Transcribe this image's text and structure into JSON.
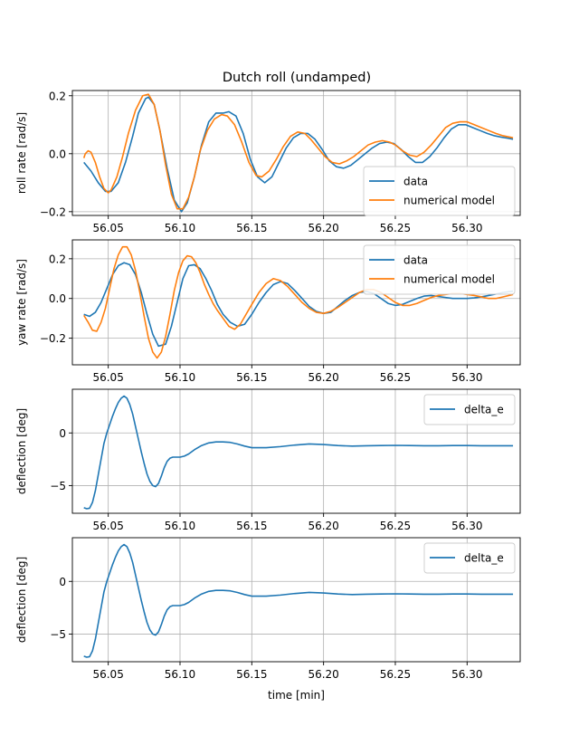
{
  "figure": {
    "title": "Dutch roll (undamped)",
    "xlabel": "time [min]"
  },
  "colors": {
    "data": "#1f77b4",
    "model": "#ff7f0e",
    "grid": "#b0b0b0",
    "axes": "#000000"
  },
  "chart_data": [
    {
      "type": "line",
      "title": "Dutch roll (undamped)",
      "xlabel": "",
      "ylabel": "roll rate [rad/s]",
      "xlim": [
        56.025,
        56.337
      ],
      "ylim": [
        -0.213,
        0.218
      ],
      "xticks": [
        56.05,
        56.1,
        56.15,
        56.2,
        56.25,
        56.3
      ],
      "xticklabels": [
        "56.05",
        "56.10",
        "56.15",
        "56.20",
        "56.25",
        "56.30"
      ],
      "yticks": [
        -0.2,
        0.0,
        0.2
      ],
      "yticklabels": [
        "−0.2",
        "0.0",
        "0.2"
      ],
      "grid": true,
      "legend": "lower-right",
      "series": [
        {
          "name": "data",
          "color": "#1f77b4",
          "x": [
            56.033,
            56.038,
            56.043,
            56.048,
            56.052,
            56.057,
            56.062,
            56.067,
            56.071,
            56.076,
            56.078,
            56.082,
            56.086,
            56.091,
            56.096,
            56.101,
            56.105,
            56.11,
            56.115,
            56.12,
            56.125,
            56.13,
            56.134,
            56.139,
            56.144,
            56.149,
            56.154,
            56.159,
            56.164,
            56.169,
            56.174,
            56.179,
            56.184,
            56.189,
            56.194,
            56.199,
            56.204,
            56.209,
            56.214,
            56.219,
            56.224,
            56.229,
            56.234,
            56.239,
            56.244,
            56.249,
            56.254,
            56.259,
            56.264,
            56.269,
            56.274,
            56.279,
            56.284,
            56.289,
            56.294,
            56.299,
            56.304,
            56.309,
            56.314,
            56.319,
            56.324,
            56.329,
            56.332
          ],
          "y": [
            -0.03,
            -0.06,
            -0.1,
            -0.13,
            -0.13,
            -0.1,
            -0.03,
            0.06,
            0.14,
            0.19,
            0.195,
            0.17,
            0.08,
            -0.05,
            -0.16,
            -0.2,
            -0.17,
            -0.08,
            0.03,
            0.11,
            0.14,
            0.14,
            0.145,
            0.13,
            0.07,
            -0.02,
            -0.08,
            -0.1,
            -0.08,
            -0.03,
            0.02,
            0.055,
            0.07,
            0.07,
            0.05,
            0.015,
            -0.025,
            -0.045,
            -0.05,
            -0.04,
            -0.02,
            0.0,
            0.02,
            0.035,
            0.04,
            0.035,
            0.015,
            -0.01,
            -0.03,
            -0.03,
            -0.01,
            0.02,
            0.055,
            0.085,
            0.1,
            0.1,
            0.09,
            0.08,
            0.07,
            0.062,
            0.057,
            0.053,
            0.05
          ]
        },
        {
          "name": "numerical model",
          "color": "#ff7f0e",
          "x": [
            56.033,
            56.034,
            56.036,
            56.038,
            56.041,
            56.044,
            56.047,
            56.05,
            56.052,
            56.056,
            56.06,
            56.064,
            56.069,
            56.074,
            56.078,
            56.082,
            56.086,
            56.09,
            56.094,
            56.098,
            56.102,
            56.106,
            56.11,
            56.114,
            56.119,
            56.124,
            56.129,
            56.133,
            56.138,
            56.143,
            56.148,
            56.153,
            56.157,
            56.162,
            56.167,
            56.172,
            56.177,
            56.182,
            56.187,
            56.191,
            56.196,
            56.201,
            56.206,
            56.211,
            56.216,
            56.221,
            56.226,
            56.231,
            56.236,
            56.241,
            56.246,
            56.25,
            56.255,
            56.26,
            56.265,
            56.27,
            56.275,
            56.28,
            56.285,
            56.29,
            56.295,
            56.3,
            56.305,
            56.31,
            56.315,
            56.32,
            56.325,
            56.332
          ],
          "y": [
            -0.015,
            0.0,
            0.01,
            0.005,
            -0.03,
            -0.08,
            -0.12,
            -0.135,
            -0.125,
            -0.08,
            -0.01,
            0.07,
            0.15,
            0.2,
            0.205,
            0.17,
            0.08,
            -0.04,
            -0.14,
            -0.19,
            -0.19,
            -0.15,
            -0.08,
            0.01,
            0.08,
            0.12,
            0.135,
            0.13,
            0.1,
            0.04,
            -0.03,
            -0.075,
            -0.08,
            -0.06,
            -0.02,
            0.025,
            0.06,
            0.075,
            0.07,
            0.05,
            0.02,
            -0.01,
            -0.03,
            -0.035,
            -0.025,
            -0.01,
            0.01,
            0.03,
            0.04,
            0.045,
            0.04,
            0.03,
            0.01,
            -0.005,
            -0.01,
            0.005,
            0.03,
            0.06,
            0.09,
            0.105,
            0.11,
            0.11,
            0.1,
            0.09,
            0.08,
            0.07,
            0.062,
            0.055
          ]
        }
      ]
    },
    {
      "type": "line",
      "title": "",
      "xlabel": "",
      "ylabel": "yaw rate [rad/s]",
      "xlim": [
        56.025,
        56.337
      ],
      "ylim": [
        -0.334,
        0.295
      ],
      "xticks": [
        56.05,
        56.1,
        56.15,
        56.2,
        56.25,
        56.3
      ],
      "xticklabels": [
        "56.05",
        "56.10",
        "56.15",
        "56.20",
        "56.25",
        "56.30"
      ],
      "yticks": [
        -0.2,
        0.0,
        0.2
      ],
      "yticklabels": [
        "−0.2",
        "0.0",
        "0.2"
      ],
      "grid": true,
      "legend": "upper-right",
      "series": [
        {
          "name": "data",
          "color": "#1f77b4",
          "x": [
            56.033,
            56.037,
            56.041,
            56.045,
            56.049,
            56.053,
            56.057,
            56.061,
            56.065,
            56.069,
            56.073,
            56.077,
            56.081,
            56.085,
            56.09,
            56.094,
            56.098,
            56.102,
            56.106,
            56.11,
            56.114,
            56.118,
            56.122,
            56.126,
            56.13,
            56.135,
            56.14,
            56.145,
            56.15,
            56.155,
            56.16,
            56.165,
            56.17,
            56.175,
            56.18,
            56.185,
            56.19,
            56.195,
            56.2,
            56.205,
            56.21,
            56.215,
            56.22,
            56.225,
            56.23,
            56.235,
            56.24,
            56.245,
            56.25,
            56.255,
            56.26,
            56.265,
            56.27,
            56.275,
            56.28,
            56.285,
            56.29,
            56.295,
            56.3,
            56.305,
            56.31,
            56.315,
            56.32,
            56.325,
            56.332
          ],
          "y": [
            -0.08,
            -0.09,
            -0.07,
            -0.02,
            0.05,
            0.12,
            0.165,
            0.18,
            0.17,
            0.12,
            0.03,
            -0.08,
            -0.18,
            -0.24,
            -0.23,
            -0.14,
            -0.02,
            0.1,
            0.165,
            0.17,
            0.15,
            0.1,
            0.04,
            -0.03,
            -0.08,
            -0.12,
            -0.14,
            -0.13,
            -0.08,
            -0.02,
            0.03,
            0.07,
            0.085,
            0.075,
            0.04,
            0.0,
            -0.04,
            -0.065,
            -0.075,
            -0.07,
            -0.04,
            -0.01,
            0.015,
            0.03,
            0.035,
            0.025,
            0.0,
            -0.025,
            -0.035,
            -0.03,
            -0.015,
            0.0,
            0.012,
            0.015,
            0.01,
            0.005,
            0.0,
            0.0,
            0.0,
            0.003,
            0.008,
            0.015,
            0.022,
            0.03,
            0.037
          ]
        },
        {
          "name": "numerical model",
          "color": "#ff7f0e",
          "x": [
            56.033,
            56.036,
            56.039,
            56.042,
            56.045,
            56.048,
            56.051,
            56.054,
            56.057,
            56.06,
            56.063,
            56.066,
            56.069,
            56.072,
            56.075,
            56.078,
            56.081,
            56.084,
            56.087,
            56.09,
            56.093,
            56.096,
            56.099,
            56.102,
            56.105,
            56.108,
            56.111,
            56.114,
            56.117,
            56.12,
            56.123,
            56.126,
            56.13,
            56.134,
            56.138,
            56.142,
            56.146,
            56.15,
            56.155,
            56.16,
            56.165,
            56.17,
            56.175,
            56.18,
            56.185,
            56.19,
            56.195,
            56.2,
            56.205,
            56.21,
            56.215,
            56.22,
            56.225,
            56.23,
            56.235,
            56.24,
            56.245,
            56.25,
            56.255,
            56.26,
            56.265,
            56.27,
            56.275,
            56.28,
            56.285,
            56.29,
            56.295,
            56.3,
            56.305,
            56.31,
            56.315,
            56.32,
            56.325,
            56.332
          ],
          "y": [
            -0.085,
            -0.12,
            -0.16,
            -0.165,
            -0.12,
            -0.05,
            0.05,
            0.15,
            0.22,
            0.26,
            0.26,
            0.22,
            0.14,
            0.03,
            -0.09,
            -0.2,
            -0.27,
            -0.3,
            -0.27,
            -0.19,
            -0.08,
            0.04,
            0.13,
            0.19,
            0.215,
            0.21,
            0.18,
            0.13,
            0.07,
            0.02,
            -0.025,
            -0.06,
            -0.1,
            -0.14,
            -0.155,
            -0.13,
            -0.08,
            -0.03,
            0.03,
            0.075,
            0.1,
            0.09,
            0.06,
            0.02,
            -0.02,
            -0.05,
            -0.07,
            -0.075,
            -0.065,
            -0.045,
            -0.02,
            0.005,
            0.03,
            0.045,
            0.045,
            0.03,
            0.005,
            -0.02,
            -0.035,
            -0.035,
            -0.025,
            -0.01,
            0.005,
            0.015,
            0.02,
            0.025,
            0.025,
            0.02,
            0.015,
            0.008,
            0.0,
            0.0,
            0.008,
            0.02
          ]
        }
      ]
    },
    {
      "type": "line",
      "title": "",
      "xlabel": "",
      "ylabel": "deflection [deg]",
      "xlim": [
        56.025,
        56.337
      ],
      "ylim": [
        -7.63,
        4.15
      ],
      "xticks": [
        56.05,
        56.1,
        56.15,
        56.2,
        56.25,
        56.3
      ],
      "xticklabels": [
        "56.05",
        "56.10",
        "56.15",
        "56.20",
        "56.25",
        "56.30"
      ],
      "yticks": [
        -5,
        0
      ],
      "yticklabels": [
        "−5",
        "0"
      ],
      "grid": true,
      "legend": "upper-right",
      "series": [
        {
          "name": "delta_e",
          "color": "#1f77b4",
          "x": [
            56.033,
            56.035,
            56.037,
            56.039,
            56.041,
            56.043,
            56.045,
            56.047,
            56.049,
            56.051,
            56.053,
            56.055,
            56.057,
            56.059,
            56.061,
            56.063,
            56.065,
            56.067,
            56.069,
            56.071,
            56.073,
            56.075,
            56.077,
            56.079,
            56.081,
            56.083,
            56.085,
            56.087,
            56.089,
            56.091,
            56.093,
            56.095,
            56.097,
            56.1,
            56.103,
            56.106,
            56.11,
            56.115,
            56.12,
            56.125,
            56.13,
            56.135,
            56.14,
            56.145,
            56.15,
            56.16,
            56.17,
            56.18,
            56.19,
            56.2,
            56.21,
            56.22,
            56.23,
            56.24,
            56.25,
            56.26,
            56.27,
            56.28,
            56.29,
            56.3,
            56.31,
            56.32,
            56.332
          ],
          "y": [
            -7.1,
            -7.2,
            -7.15,
            -6.6,
            -5.5,
            -4.0,
            -2.5,
            -1.0,
            0.0,
            0.8,
            1.6,
            2.3,
            2.9,
            3.3,
            3.5,
            3.3,
            2.7,
            1.8,
            0.6,
            -0.6,
            -1.8,
            -2.9,
            -3.9,
            -4.6,
            -5.0,
            -5.1,
            -4.8,
            -4.1,
            -3.3,
            -2.7,
            -2.4,
            -2.3,
            -2.3,
            -2.3,
            -2.2,
            -2.0,
            -1.6,
            -1.2,
            -0.95,
            -0.85,
            -0.85,
            -0.9,
            -1.05,
            -1.25,
            -1.4,
            -1.4,
            -1.3,
            -1.15,
            -1.05,
            -1.1,
            -1.2,
            -1.25,
            -1.22,
            -1.2,
            -1.18,
            -1.2,
            -1.22,
            -1.22,
            -1.2,
            -1.2,
            -1.22,
            -1.22,
            -1.22
          ]
        }
      ]
    },
    {
      "type": "line",
      "title": "",
      "xlabel": "time [min]",
      "ylabel": "deflection [deg]",
      "xlim": [
        56.025,
        56.337
      ],
      "ylim": [
        -7.63,
        4.15
      ],
      "xticks": [
        56.05,
        56.1,
        56.15,
        56.2,
        56.25,
        56.3
      ],
      "xticklabels": [
        "56.05",
        "56.10",
        "56.15",
        "56.20",
        "56.25",
        "56.30"
      ],
      "yticks": [
        -5,
        0
      ],
      "yticklabels": [
        "−5",
        "0"
      ],
      "grid": true,
      "legend": "upper-right",
      "series": [
        {
          "name": "delta_e",
          "color": "#1f77b4",
          "x": [
            56.033,
            56.035,
            56.037,
            56.039,
            56.041,
            56.043,
            56.045,
            56.047,
            56.049,
            56.051,
            56.053,
            56.055,
            56.057,
            56.059,
            56.061,
            56.063,
            56.065,
            56.067,
            56.069,
            56.071,
            56.073,
            56.075,
            56.077,
            56.079,
            56.081,
            56.083,
            56.085,
            56.087,
            56.089,
            56.091,
            56.093,
            56.095,
            56.097,
            56.1,
            56.103,
            56.106,
            56.11,
            56.115,
            56.12,
            56.125,
            56.13,
            56.135,
            56.14,
            56.145,
            56.15,
            56.16,
            56.17,
            56.18,
            56.19,
            56.2,
            56.21,
            56.22,
            56.23,
            56.24,
            56.25,
            56.26,
            56.27,
            56.28,
            56.29,
            56.3,
            56.31,
            56.32,
            56.332
          ],
          "y": [
            -7.1,
            -7.2,
            -7.15,
            -6.6,
            -5.5,
            -4.0,
            -2.5,
            -1.0,
            0.0,
            0.8,
            1.6,
            2.3,
            2.9,
            3.3,
            3.5,
            3.3,
            2.7,
            1.8,
            0.6,
            -0.6,
            -1.8,
            -2.9,
            -3.9,
            -4.6,
            -5.0,
            -5.1,
            -4.8,
            -4.1,
            -3.3,
            -2.7,
            -2.4,
            -2.3,
            -2.3,
            -2.3,
            -2.2,
            -2.0,
            -1.6,
            -1.2,
            -0.95,
            -0.85,
            -0.85,
            -0.9,
            -1.05,
            -1.25,
            -1.4,
            -1.4,
            -1.3,
            -1.15,
            -1.05,
            -1.1,
            -1.2,
            -1.25,
            -1.22,
            -1.2,
            -1.18,
            -1.2,
            -1.22,
            -1.22,
            -1.2,
            -1.2,
            -1.22,
            -1.22,
            -1.22
          ]
        }
      ]
    }
  ]
}
